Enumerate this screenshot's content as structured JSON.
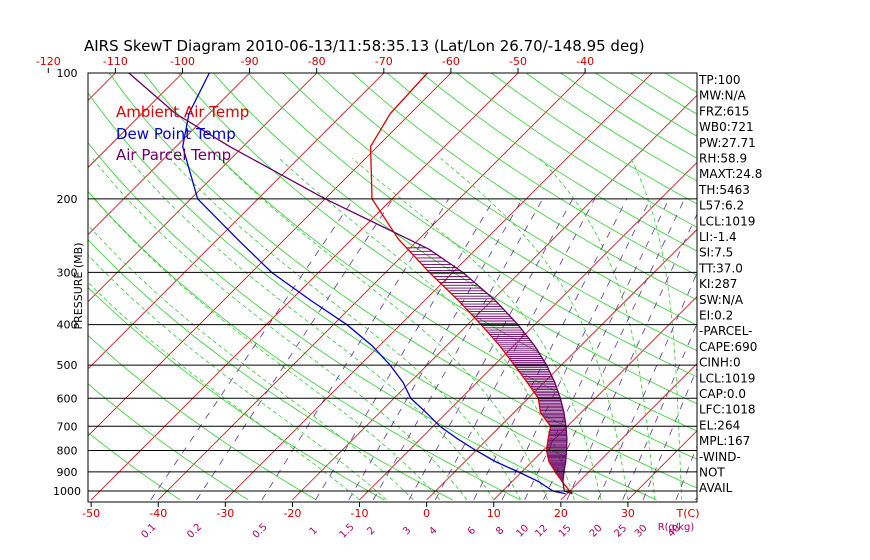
{
  "chart_data": {
    "type": "line",
    "title": "AIRS SkewT Diagram 2010-06-13/11:58:35.13 (Lat/Lon 26.70/-148.95 deg)",
    "ylabel": "PRESSURE (MB)",
    "y_scale": "log",
    "ylim": [
      1050,
      100
    ],
    "pressure_ticks": [
      100,
      200,
      300,
      400,
      500,
      600,
      700,
      800,
      900,
      1000
    ],
    "bottom_temp_ticks": [
      -50,
      -40,
      -30,
      -20,
      -10,
      0,
      10,
      20,
      30
    ],
    "top_temp_ticks": [
      -120,
      -110,
      -100,
      -90,
      -80,
      -70,
      -60,
      -50,
      -40
    ],
    "temp_axis_label": "T(C)",
    "mixing_ratio_ticks": [
      "0.1",
      "0.2",
      "0.5",
      "1",
      "1.5",
      "2",
      "3",
      "4",
      "6",
      "8",
      "10",
      "12",
      "15",
      "20",
      "25",
      "30",
      "40"
    ],
    "mixing_axis_label": "R(g/kg)",
    "legend": [
      {
        "label": "Ambient Air Temp",
        "color": "#dd0000"
      },
      {
        "label": "Dew Point Temp",
        "color": "#0000cc"
      },
      {
        "label": "Air Parcel Temp",
        "color": "#660066"
      }
    ],
    "series": [
      {
        "name": "Ambient Air Temp",
        "color": "#dd0000",
        "points": [
          [
            1015,
            20.8
          ],
          [
            1000,
            20.0
          ],
          [
            950,
            17.5
          ],
          [
            900,
            15.0
          ],
          [
            850,
            12.5
          ],
          [
            800,
            10.5
          ],
          [
            750,
            9.0
          ],
          [
            700,
            7.5
          ],
          [
            650,
            4.0
          ],
          [
            600,
            1.5
          ],
          [
            550,
            -2.5
          ],
          [
            500,
            -7.0
          ],
          [
            450,
            -12.0
          ],
          [
            400,
            -18.0
          ],
          [
            350,
            -25.0
          ],
          [
            300,
            -33.5
          ],
          [
            250,
            -43.0
          ],
          [
            200,
            -53.0
          ],
          [
            150,
            -61.0
          ],
          [
            125,
            -63.0
          ],
          [
            100,
            -63.5
          ]
        ]
      },
      {
        "name": "Dew Point Temp",
        "color": "#0000cc",
        "points": [
          [
            1015,
            19.8
          ],
          [
            1000,
            17.5
          ],
          [
            950,
            14.0
          ],
          [
            900,
            9.5
          ],
          [
            850,
            4.5
          ],
          [
            800,
            0.0
          ],
          [
            750,
            -4.5
          ],
          [
            700,
            -9.0
          ],
          [
            650,
            -13.0
          ],
          [
            600,
            -17.5
          ],
          [
            550,
            -21.0
          ],
          [
            500,
            -25.5
          ],
          [
            450,
            -31.0
          ],
          [
            400,
            -38.0
          ],
          [
            350,
            -47.0
          ],
          [
            300,
            -57.0
          ],
          [
            250,
            -67.0
          ],
          [
            200,
            -79.0
          ],
          [
            150,
            -89.0
          ],
          [
            125,
            -93.0
          ],
          [
            100,
            -96.0
          ]
        ]
      },
      {
        "name": "Air Parcel Temp",
        "color": "#660066",
        "points": [
          [
            1015,
            20.8
          ],
          [
            1000,
            19.2
          ],
          [
            950,
            17.6
          ],
          [
            900,
            16.3
          ],
          [
            850,
            15.0
          ],
          [
            800,
            13.5
          ],
          [
            750,
            11.8
          ],
          [
            700,
            9.8
          ],
          [
            650,
            7.5
          ],
          [
            600,
            4.8
          ],
          [
            550,
            1.6
          ],
          [
            500,
            -2.2
          ],
          [
            450,
            -6.8
          ],
          [
            400,
            -12.5
          ],
          [
            350,
            -19.5
          ],
          [
            300,
            -28.5
          ],
          [
            264,
            -37.0
          ],
          [
            250,
            -41.5
          ],
          [
            200,
            -60.0
          ],
          [
            150,
            -82.0
          ],
          [
            125,
            -95.0
          ],
          [
            100,
            -108.0
          ]
        ]
      }
    ],
    "indices": [
      "TP:100",
      "MW:N/A",
      "FRZ:615",
      "WB0:721",
      "PW:27.71",
      "RH:58.9",
      "MAXT:24.8",
      "TH:5463",
      "L57:6.2",
      "LCL:1019",
      "LI:-1.4",
      "SI:7.5",
      "TT:37.0",
      "KI:287",
      "SW:N/A",
      "EI:0.2",
      "-PARCEL-",
      "CAPE:690",
      "CINH:0",
      "LCL:1019",
      "CAP:0.0",
      "LFC:1018",
      "EL:264",
      "MPL:167",
      "-WIND-",
      "NOT",
      "AVAIL"
    ],
    "grid": true
  }
}
